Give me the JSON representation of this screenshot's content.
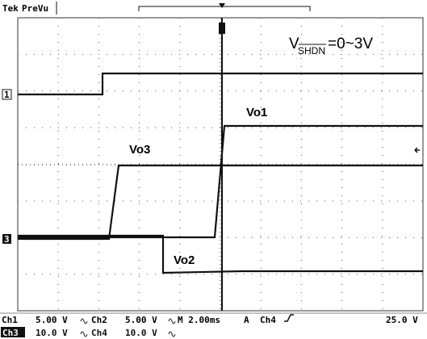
{
  "header": {
    "brand": "Tek",
    "mode": "PreVu"
  },
  "annotations": {
    "v": "V",
    "sub": "SHDN",
    "range": "=0~3V",
    "vo1": "Vo1",
    "vo3": "Vo3",
    "vo2": "Vo2"
  },
  "markers": [
    "1",
    "3"
  ],
  "status": {
    "row1": [
      "Ch1",
      "5.00 V",
      "Ch2",
      "5.00 V",
      "M 2.00ms",
      "A",
      "Ch4",
      "25.0 V"
    ],
    "row2": [
      "Ch3",
      "10.0 V",
      "Ch4",
      "10.0 V"
    ]
  }
}
